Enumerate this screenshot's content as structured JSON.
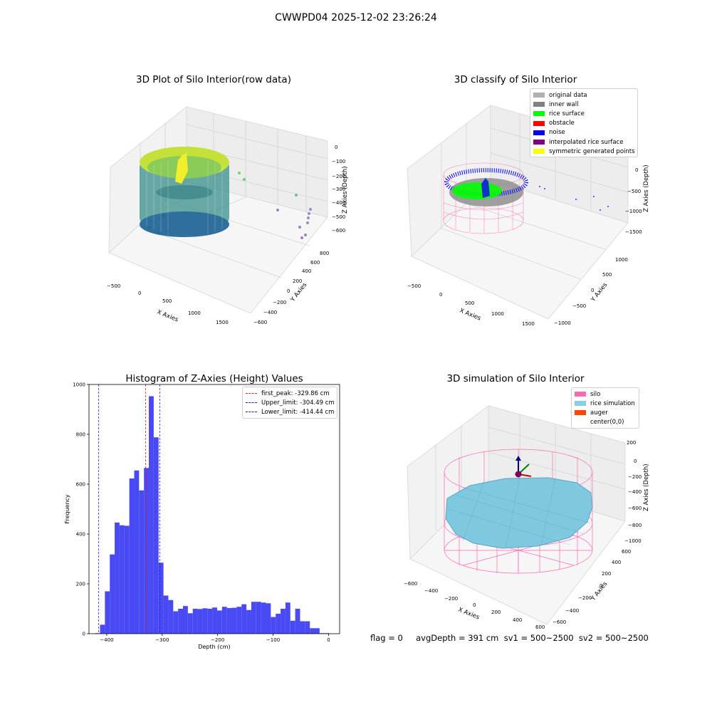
{
  "figure": {
    "suptitle": "CWWPD04 2025-12-02 23:26:24",
    "footer": "flag = 0     avgDepth = 391 cm  sv1 = 500~2500  sv2 = 500~2500"
  },
  "colors": {
    "hist_bar": "#4a4af5",
    "first_peak": "#e02020",
    "limit": "#2020c0",
    "pane": "#f2f2f2",
    "silo_mesh": "#ff69b4",
    "rice": "#7ec8e0",
    "noise": "#0000ff",
    "rice_surface": "#00ff00"
  },
  "plots": {
    "raw": {
      "title": "3D Plot of Silo Interior(row data)",
      "xlabel": "X Axies",
      "ylabel": "Y Axies",
      "zlabel": "Z Axies (Depth)",
      "xticks": [
        "−500",
        "0",
        "500",
        "1000",
        "1500"
      ],
      "yticks": [
        "−600",
        "−400",
        "−200",
        "0",
        "200",
        "400",
        "600",
        "800"
      ],
      "zticks": [
        "0",
        "−100",
        "−200",
        "−300",
        "−400",
        "−500",
        "−600"
      ]
    },
    "classify": {
      "title": "3D classify of Silo Interior",
      "xlabel": "X Axies",
      "ylabel": "Y Axies",
      "zlabel": "Z Axies (Depth)",
      "xticks": [
        "−500",
        "0",
        "500",
        "1000",
        "1500"
      ],
      "yticks": [
        "−1000",
        "−500",
        "0",
        "500",
        "1000"
      ],
      "zticks": [
        "0",
        "−500",
        "−1000",
        "−1500"
      ],
      "ztop_fragment": "00",
      "legend": [
        {
          "label": "original data",
          "color": "#b0b0b0"
        },
        {
          "label": "inner wall",
          "color": "#808080"
        },
        {
          "label": "rice surface",
          "color": "#00ff00"
        },
        {
          "label": "obstacle",
          "color": "#ff0000"
        },
        {
          "label": "noise",
          "color": "#0000ff"
        },
        {
          "label": "interpolated rice surface",
          "color": "#800080"
        },
        {
          "label": "symmetric generated points",
          "color": "#ffff00"
        }
      ]
    },
    "simulation": {
      "title": "3D simulation of Silo Interior",
      "xlabel": "X Axies",
      "ylabel": "Y Axies",
      "zlabel": "Z Axies (Depth)",
      "xticks": [
        "−600",
        "−400",
        "−200",
        "0",
        "200",
        "400",
        "600"
      ],
      "yticks": [
        "−600",
        "−400",
        "−200",
        "0",
        "200",
        "400",
        "600"
      ],
      "zticks": [
        "200",
        "0",
        "−200",
        "−400",
        "−600",
        "−800",
        "−1000"
      ],
      "legend": [
        {
          "label": "silo",
          "color": "#ff69b4"
        },
        {
          "label": "rice simulation",
          "color": "#87ceeb"
        },
        {
          "label": "auger",
          "color": "#ff4500"
        },
        {
          "label": "center(0,0)",
          "color": "#ffffff"
        }
      ]
    }
  },
  "chart_data": {
    "type": "bar",
    "title": "Histogram of Z-Axies (Height) Values",
    "xlabel": "Depth (cm)",
    "ylabel": "Frequency",
    "xlim": [
      -432,
      20
    ],
    "ylim": [
      0,
      1000
    ],
    "xticks": [
      -400,
      -300,
      -200,
      -100,
      0
    ],
    "xtick_labels": [
      "−400",
      "−300",
      "−200",
      "−100",
      "0"
    ],
    "yticks": [
      0,
      200,
      400,
      600,
      800,
      1000
    ],
    "bin_edges": [
      -420.9,
      -412.1,
      -403.3,
      -394.5,
      -385.7,
      -376.9,
      -368.1,
      -359.3,
      -350.5,
      -341.7,
      -332.9,
      -324.1,
      -315.3,
      -306.5,
      -297.7,
      -288.9,
      -280.1,
      -271.3,
      -262.5,
      -253.7,
      -244.9,
      -236.1,
      -227.3,
      -218.5,
      -209.7,
      -200.9,
      -192.1,
      -183.3,
      -174.5,
      -165.7,
      -156.9,
      -148.1,
      -139.3,
      -130.5,
      -121.7,
      -112.9,
      -104.1,
      -95.3,
      -86.5,
      -77.7,
      -68.9,
      -60.1,
      -51.3,
      -42.5,
      -33.7,
      -24.9,
      -16.1,
      -7.3,
      1.5
    ],
    "counts": [
      2,
      36,
      170,
      318,
      446,
      435,
      433,
      623,
      655,
      575,
      665,
      953,
      788,
      285,
      153,
      135,
      90,
      100,
      111,
      82,
      100,
      99,
      102,
      100,
      105,
      93,
      108,
      103,
      104,
      108,
      118,
      95,
      128,
      128,
      125,
      122,
      67,
      80,
      100,
      125,
      52,
      100,
      50,
      50,
      22,
      22,
      2,
      2
    ],
    "vlines": [
      {
        "name": "first_peak",
        "label": "first_peak: -329.86 cm",
        "x": -329.86,
        "color": "#e02020"
      },
      {
        "name": "upper",
        "label": "Upper_limit: -304.49 cm",
        "x": -304.49,
        "color": "#2020c0"
      },
      {
        "name": "lower",
        "label": "Lower_limit: -414.44 cm",
        "x": -414.44,
        "color": "#2020c0"
      }
    ],
    "legend_position": "top-right"
  }
}
